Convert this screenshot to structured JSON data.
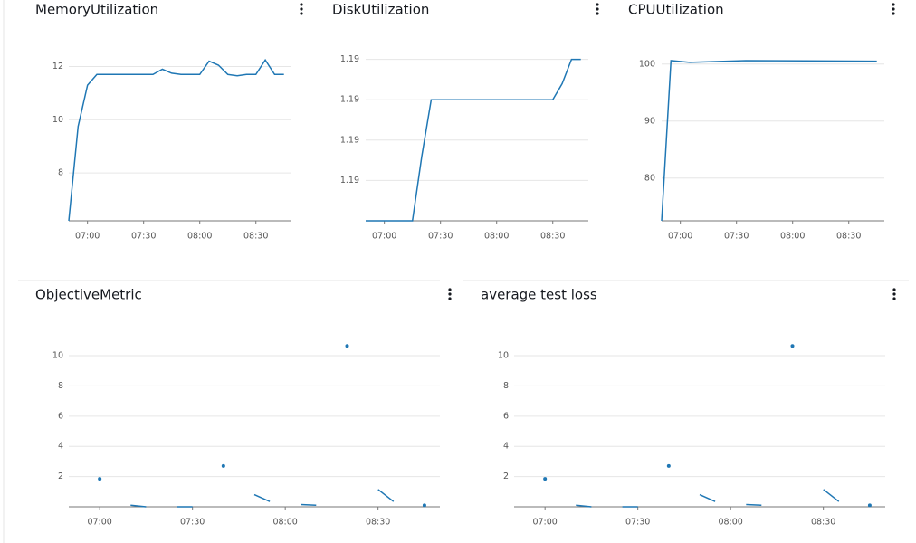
{
  "chart_data": [
    {
      "type": "line",
      "title": "MemoryUtilization",
      "color": "#1f77b4",
      "grid": true,
      "x": [
        "06:50",
        "06:55",
        "07:00",
        "07:05",
        "07:35",
        "07:40",
        "07:45",
        "07:50",
        "08:00",
        "08:05",
        "08:10",
        "08:15",
        "08:20",
        "08:25",
        "08:30",
        "08:35",
        "08:40",
        "08:45"
      ],
      "values": [
        6.2,
        9.75,
        11.3,
        11.7,
        11.7,
        11.9,
        11.75,
        11.7,
        11.7,
        12.2,
        12.05,
        11.7,
        11.65,
        11.7,
        11.7,
        12.25,
        11.7,
        11.7
      ],
      "xlim": [
        "06:50",
        "08:49"
      ],
      "xticks": [
        "07:00",
        "07:30",
        "08:00",
        "08:30"
      ],
      "ylim": [
        6.2,
        12.8
      ],
      "yticks": [
        8,
        10,
        12
      ]
    },
    {
      "type": "line",
      "title": "DiskUtilization",
      "color": "#1f77b4",
      "grid": true,
      "x": [
        "06:50",
        "07:15",
        "07:20",
        "07:25",
        "08:30",
        "08:35",
        "08:40",
        "08:45"
      ],
      "values": [
        1.19,
        1.19,
        1.19032,
        1.1906,
        1.1906,
        1.19068,
        1.1908,
        1.1908
      ],
      "xlim": [
        "06:50",
        "08:49"
      ],
      "xticks": [
        "07:00",
        "07:30",
        "08:00",
        "08:30"
      ],
      "ylim": [
        1.19,
        1.19087
      ],
      "yticks": [
        {
          "value": 1.1902,
          "label": "1.19"
        },
        {
          "value": 1.1904,
          "label": "1.19"
        },
        {
          "value": 1.1906,
          "label": "1.19"
        },
        {
          "value": 1.1908,
          "label": "1.19"
        }
      ]
    },
    {
      "type": "line",
      "title": "CPUUtilization",
      "color": "#1f77b4",
      "grid": true,
      "x": [
        "06:50",
        "06:55",
        "07:05",
        "07:35",
        "08:45"
      ],
      "values": [
        72.5,
        100.6,
        100.3,
        100.6,
        100.5
      ],
      "xlim": [
        "06:50",
        "08:49"
      ],
      "xticks": [
        "07:00",
        "07:30",
        "08:00",
        "08:30"
      ],
      "ylim": [
        72.5,
        103.3
      ],
      "yticks": [
        80,
        90,
        100
      ]
    },
    {
      "type": "line",
      "title": "ObjectiveMetric",
      "color": "#1f77b4",
      "grid": true,
      "x": [
        "07:00",
        "07:05",
        "07:10",
        "07:15",
        "07:20",
        "07:25",
        "07:30",
        "07:35",
        "07:40",
        "07:45",
        "07:50",
        "07:55",
        "08:00",
        "08:05",
        "08:10",
        "08:15",
        "08:20",
        "08:25",
        "08:30",
        "08:35",
        "08:40",
        "08:45"
      ],
      "values": [
        1.85,
        null,
        0.1,
        0,
        null,
        0,
        0,
        null,
        2.7,
        null,
        0.8,
        0.35,
        null,
        0.15,
        0.1,
        null,
        10.65,
        null,
        1.15,
        0.35,
        null,
        0.1
      ],
      "xlim": [
        "06:50",
        "08:50"
      ],
      "xticks": [
        "07:00",
        "07:30",
        "08:00",
        "08:30"
      ],
      "ylim": [
        0,
        11.5
      ],
      "yticks": [
        2,
        4,
        6,
        8,
        10
      ]
    },
    {
      "type": "line",
      "title": "average test loss",
      "color": "#1f77b4",
      "grid": true,
      "x": [
        "07:00",
        "07:05",
        "07:10",
        "07:15",
        "07:20",
        "07:25",
        "07:30",
        "07:35",
        "07:40",
        "07:45",
        "07:50",
        "07:55",
        "08:00",
        "08:05",
        "08:10",
        "08:15",
        "08:20",
        "08:25",
        "08:30",
        "08:35",
        "08:40",
        "08:45"
      ],
      "values": [
        1.85,
        null,
        0.1,
        0,
        null,
        0,
        0,
        null,
        2.7,
        null,
        0.8,
        0.35,
        null,
        0.15,
        0.1,
        null,
        10.65,
        null,
        1.15,
        0.35,
        null,
        0.1
      ],
      "xlim": [
        "06:50",
        "08:50"
      ],
      "xticks": [
        "07:00",
        "07:30",
        "08:00",
        "08:30"
      ],
      "ylim": [
        0,
        11.5
      ],
      "yticks": [
        2,
        4,
        6,
        8,
        10
      ]
    }
  ]
}
